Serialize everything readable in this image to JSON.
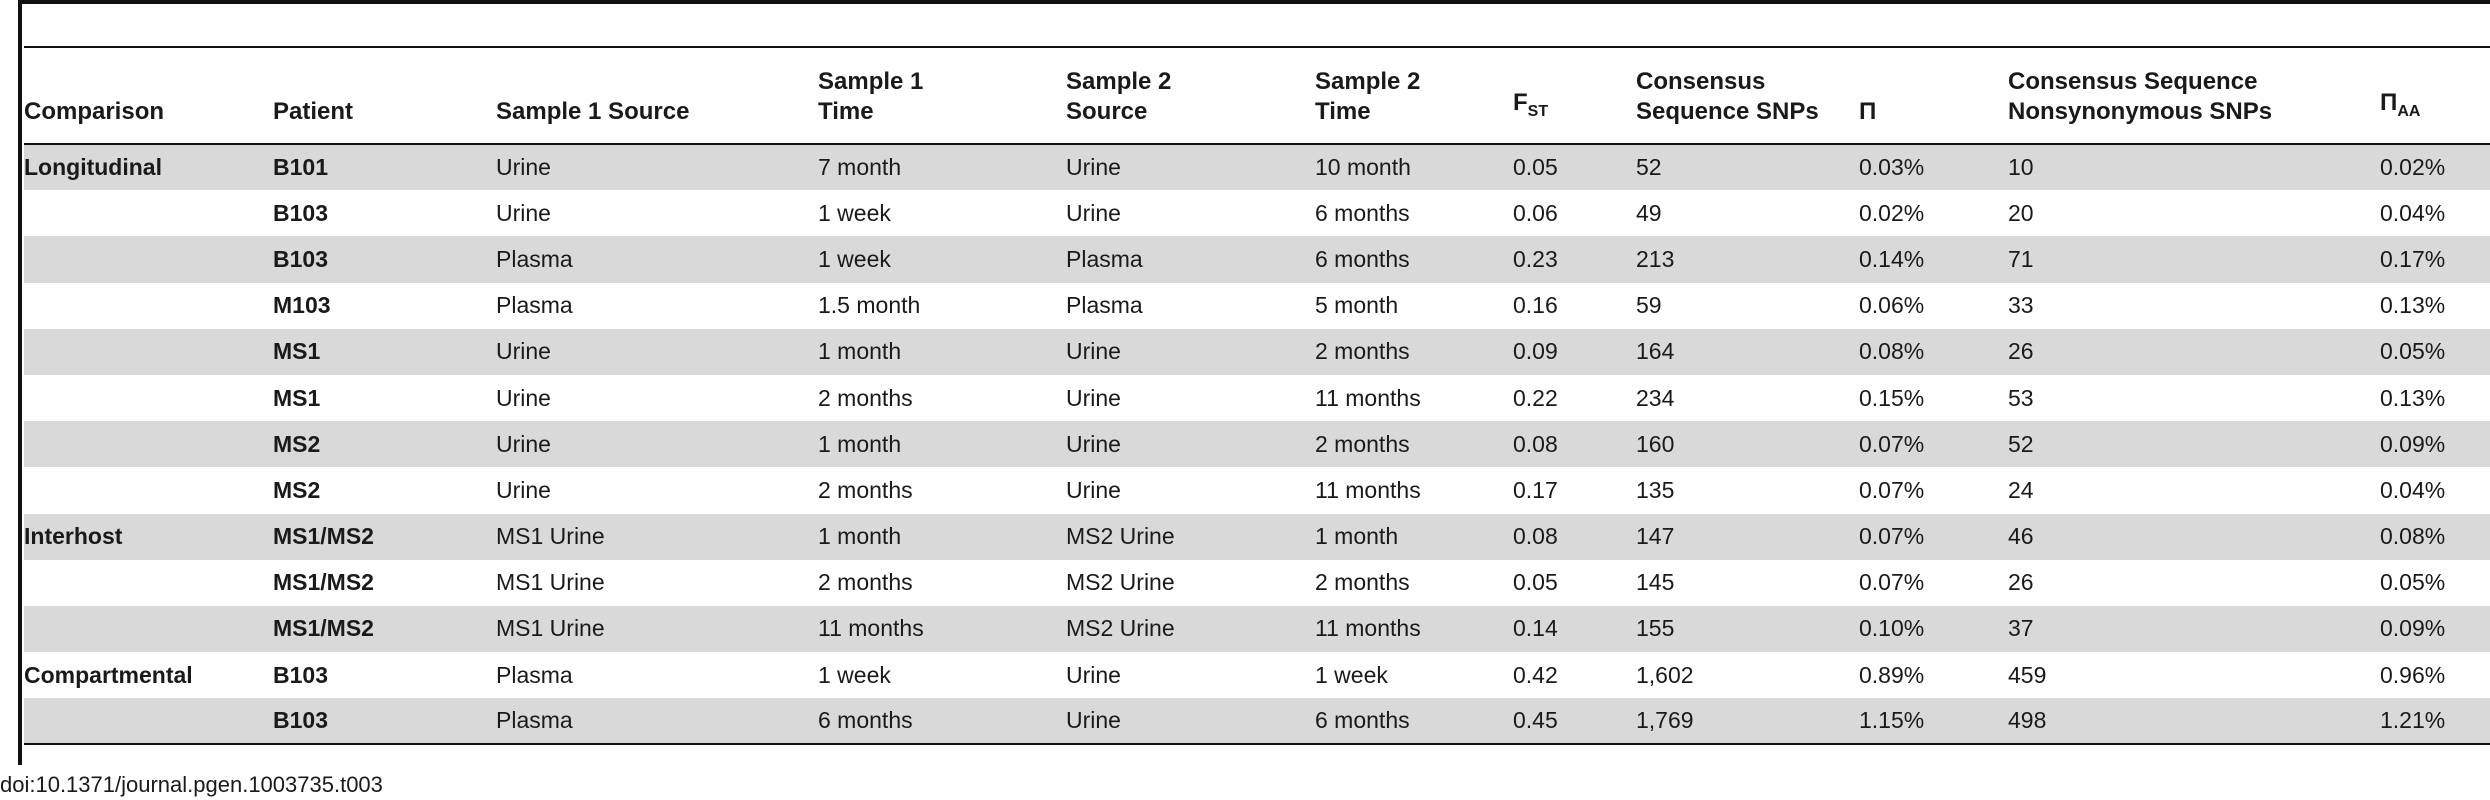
{
  "table": {
    "headers": [
      {
        "key": "comparison",
        "html": "Comparison"
      },
      {
        "key": "patient",
        "html": "Patient"
      },
      {
        "key": "sample1_source",
        "html": "Sample 1 Source"
      },
      {
        "key": "sample1_time",
        "html": "Sample 1<br>Time"
      },
      {
        "key": "sample2_source",
        "html": "Sample 2<br>Source"
      },
      {
        "key": "sample2_time",
        "html": "Sample 2<br>Time"
      },
      {
        "key": "fst",
        "html": "F<sub>ST</sub>"
      },
      {
        "key": "consensus_snps",
        "html": "Consensus<br>Sequence SNPs"
      },
      {
        "key": "pi",
        "html": "Π"
      },
      {
        "key": "nonsyn_snps",
        "html": "Consensus Sequence<br>Nonsynonymous SNPs"
      },
      {
        "key": "pi_aa",
        "html": "Π<sub>AA</sub>"
      }
    ],
    "rows": [
      [
        "Longitudinal",
        "B101",
        "Urine",
        "7 month",
        "Urine",
        "10 month",
        "0.05",
        "52",
        "0.03%",
        "10",
        "0.02%"
      ],
      [
        "",
        "B103",
        "Urine",
        "1 week",
        "Urine",
        "6 months",
        "0.06",
        "49",
        "0.02%",
        "20",
        "0.04%"
      ],
      [
        "",
        "B103",
        "Plasma",
        "1 week",
        "Plasma",
        "6 months",
        "0.23",
        "213",
        "0.14%",
        "71",
        "0.17%"
      ],
      [
        "",
        "M103",
        "Plasma",
        "1.5 month",
        "Plasma",
        "5 month",
        "0.16",
        "59",
        "0.06%",
        "33",
        "0.13%"
      ],
      [
        "",
        "MS1",
        "Urine",
        "1 month",
        "Urine",
        "2 months",
        "0.09",
        "164",
        "0.08%",
        "26",
        "0.05%"
      ],
      [
        "",
        "MS1",
        "Urine",
        "2 months",
        "Urine",
        "11 months",
        "0.22",
        "234",
        "0.15%",
        "53",
        "0.13%"
      ],
      [
        "",
        "MS2",
        "Urine",
        "1 month",
        "Urine",
        "2 months",
        "0.08",
        "160",
        "0.07%",
        "52",
        "0.09%"
      ],
      [
        "",
        "MS2",
        "Urine",
        "2 months",
        "Urine",
        "11 months",
        "0.17",
        "135",
        "0.07%",
        "24",
        "0.04%"
      ],
      [
        "Interhost",
        "MS1/MS2",
        "MS1 Urine",
        "1 month",
        "MS2 Urine",
        "1 month",
        "0.08",
        "147",
        "0.07%",
        "46",
        "0.08%"
      ],
      [
        "",
        "MS1/MS2",
        "MS1 Urine",
        "2 months",
        "MS2 Urine",
        "2 months",
        "0.05",
        "145",
        "0.07%",
        "26",
        "0.05%"
      ],
      [
        "",
        "MS1/MS2",
        "MS1 Urine",
        "11 months",
        "MS2 Urine",
        "11 months",
        "0.14",
        "155",
        "0.10%",
        "37",
        "0.09%"
      ],
      [
        "Compartmental",
        "B103",
        "Plasma",
        "1 week",
        "Urine",
        "1 week",
        "0.42",
        "1,602",
        "0.89%",
        "459",
        "0.96%"
      ],
      [
        "",
        "B103",
        "Plasma",
        "6 months",
        "Urine",
        "6 months",
        "0.45",
        "1,769",
        "1.15%",
        "498",
        "1.21%"
      ]
    ]
  },
  "footer": {
    "doi": "doi:10.1371/journal.pgen.1003735.t003"
  }
}
